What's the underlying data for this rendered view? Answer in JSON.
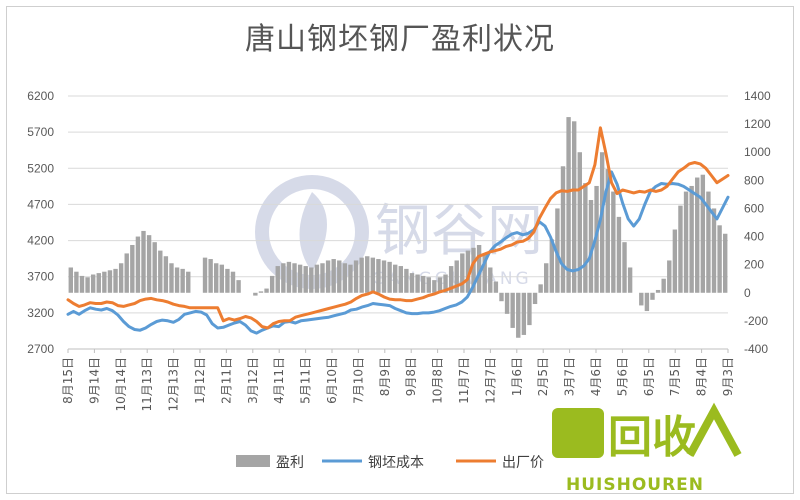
{
  "chart_data": {
    "type": "bar+line",
    "title": "唐山钢坯钢厂盈利状况",
    "left_axis": {
      "min": 2700,
      "max": 6200,
      "ticks": [
        2700,
        3200,
        3700,
        4200,
        4700,
        5200,
        5700,
        6200
      ]
    },
    "right_axis": {
      "min": -400,
      "max": 1400,
      "ticks": [
        -400,
        -200,
        0,
        200,
        400,
        600,
        800,
        1000,
        1200,
        1400
      ]
    },
    "x_tick_labels": [
      "8月15日",
      "9月14日",
      "10月14日",
      "11月13日",
      "12月13日",
      "1月12日",
      "2月11日",
      "3月12日",
      "4月11日",
      "5月11日",
      "6月10日",
      "7月10日",
      "8月9日",
      "9月8日",
      "10月8日",
      "11月7日",
      "12月7日",
      "1月6日",
      "2月5日",
      "3月7日",
      "4月6日",
      "5月6日",
      "6月5日",
      "7月5日",
      "8月4日",
      "9月3日"
    ],
    "grid": true,
    "legend_position": "bottom",
    "series": [
      {
        "name": "盈利",
        "axis": "right",
        "kind": "bar",
        "color": "#a5a5a5",
        "values": [
          180,
          150,
          120,
          110,
          130,
          140,
          150,
          160,
          170,
          210,
          280,
          340,
          400,
          440,
          410,
          360,
          300,
          260,
          210,
          180,
          170,
          150,
          0,
          0,
          250,
          240,
          210,
          200,
          170,
          150,
          90,
          0,
          0,
          -20,
          10,
          30,
          120,
          190,
          210,
          220,
          210,
          200,
          190,
          180,
          200,
          210,
          230,
          240,
          230,
          210,
          200,
          230,
          250,
          260,
          250,
          240,
          230,
          220,
          200,
          190,
          170,
          140,
          130,
          120,
          110,
          90,
          110,
          130,
          190,
          230,
          280,
          300,
          320,
          340,
          280,
          180,
          80,
          -60,
          -150,
          -250,
          -320,
          -300,
          -230,
          -80,
          60,
          210,
          380,
          600,
          900,
          1250,
          1220,
          1000,
          780,
          660,
          760,
          1000,
          880,
          720,
          540,
          360,
          180,
          0,
          -90,
          -130,
          -50,
          20,
          100,
          230,
          450,
          620,
          720,
          760,
          820,
          840,
          720,
          600,
          480,
          420
        ]
      },
      {
        "name": "钢坯成本",
        "axis": "left",
        "kind": "line",
        "color": "#5b9bd5",
        "values": [
          3180,
          3220,
          3180,
          3230,
          3270,
          3250,
          3240,
          3260,
          3230,
          3170,
          3080,
          3010,
          2970,
          2960,
          2990,
          3040,
          3080,
          3100,
          3090,
          3070,
          3110,
          3180,
          3200,
          3220,
          3210,
          3170,
          3050,
          2990,
          3000,
          3030,
          3060,
          3080,
          3030,
          2950,
          2920,
          2960,
          2990,
          3020,
          3010,
          3070,
          3080,
          3060,
          3090,
          3100,
          3110,
          3120,
          3130,
          3140,
          3160,
          3180,
          3200,
          3240,
          3250,
          3280,
          3300,
          3330,
          3320,
          3310,
          3300,
          3260,
          3230,
          3200,
          3190,
          3190,
          3200,
          3200,
          3210,
          3230,
          3260,
          3290,
          3310,
          3350,
          3420,
          3560,
          3720,
          3880,
          4040,
          4130,
          4180,
          4240,
          4290,
          4310,
          4280,
          4300,
          4350,
          4460,
          4400,
          4250,
          4050,
          3880,
          3800,
          3780,
          3800,
          3850,
          3950,
          4200,
          4490,
          4880,
          5150,
          4980,
          4720,
          4500,
          4400,
          4500,
          4700,
          4880,
          4950,
          4990,
          4980,
          4990,
          4980,
          4950,
          4900,
          4850,
          4800,
          4700,
          4600,
          4500,
          4650,
          4800
        ]
      },
      {
        "name": "出厂价",
        "axis": "left",
        "kind": "line",
        "color": "#ed7d31",
        "values": [
          3380,
          3330,
          3290,
          3310,
          3340,
          3330,
          3330,
          3350,
          3340,
          3300,
          3290,
          3310,
          3330,
          3370,
          3390,
          3400,
          3380,
          3370,
          3350,
          3320,
          3300,
          3290,
          3270,
          3270,
          3270,
          3270,
          3270,
          3270,
          3090,
          3120,
          3100,
          3120,
          3150,
          3130,
          3080,
          3010,
          2990,
          3050,
          3080,
          3090,
          3090,
          3140,
          3160,
          3180,
          3200,
          3220,
          3240,
          3260,
          3280,
          3300,
          3320,
          3350,
          3400,
          3440,
          3460,
          3490,
          3460,
          3420,
          3390,
          3380,
          3380,
          3370,
          3370,
          3390,
          3410,
          3440,
          3460,
          3490,
          3510,
          3540,
          3570,
          3600,
          3660,
          3880,
          3980,
          4010,
          4040,
          4060,
          4080,
          4120,
          4140,
          4180,
          4190,
          4230,
          4320,
          4510,
          4650,
          4780,
          4860,
          4890,
          4880,
          4900,
          4900,
          4950,
          5000,
          5250,
          5760,
          5400,
          5000,
          4850,
          4900,
          4880,
          4860,
          4880,
          4870,
          4900,
          4880,
          4900,
          4950,
          5050,
          5150,
          5200,
          5260,
          5280,
          5260,
          5200,
          5100,
          5000,
          5050,
          5100
        ]
      }
    ]
  },
  "watermark": {
    "brand": "钢谷网",
    "pinyin": "GANGGUWANG"
  },
  "badge": {
    "chars": "回收",
    "pinyin": "HUISHOUREN"
  }
}
